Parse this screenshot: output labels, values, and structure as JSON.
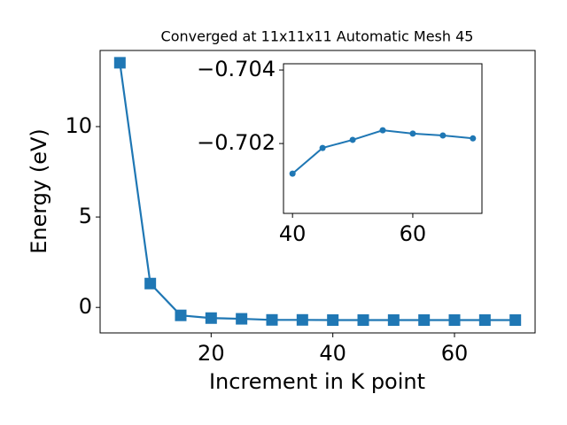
{
  "chart_data": [
    {
      "type": "line",
      "title": "Converged at 11x11x11 Automatic Mesh 45",
      "xlabel": "Increment in K point",
      "ylabel": "Energy (eV)",
      "x": [
        5,
        10,
        15,
        20,
        25,
        30,
        35,
        40,
        45,
        50,
        55,
        60,
        65,
        70
      ],
      "series": [
        {
          "color": "#1f77b4",
          "marker": "square",
          "values": [
            13.53,
            1.32,
            -0.44,
            -0.59,
            -0.63,
            -0.69,
            -0.69,
            -0.7,
            -0.7,
            -0.7,
            -0.7,
            -0.7,
            -0.7,
            -0.7
          ]
        }
      ],
      "xlim": [
        1.75,
        73.25
      ],
      "xticks": [
        20,
        40,
        60
      ],
      "ylim": [
        -1.41,
        14.21
      ],
      "yticks": [
        0,
        5,
        10
      ]
    },
    {
      "type": "line",
      "x": [
        40,
        45,
        50,
        55,
        60,
        65,
        70
      ],
      "series": [
        {
          "color": "#1f77b4",
          "marker": "circle",
          "values": [
            -0.70118,
            -0.70188,
            -0.7021,
            -0.70236,
            -0.70227,
            -0.70222,
            -0.70214
          ]
        }
      ],
      "xlim": [
        38.5,
        71.5
      ],
      "xticks": [
        40,
        60
      ],
      "ylim": [
        -0.7001,
        -0.70417
      ],
      "yticks": [
        {
          "value": -0.704,
          "label": "−0.704"
        },
        {
          "value": -0.702,
          "label": "−0.702"
        }
      ]
    }
  ]
}
